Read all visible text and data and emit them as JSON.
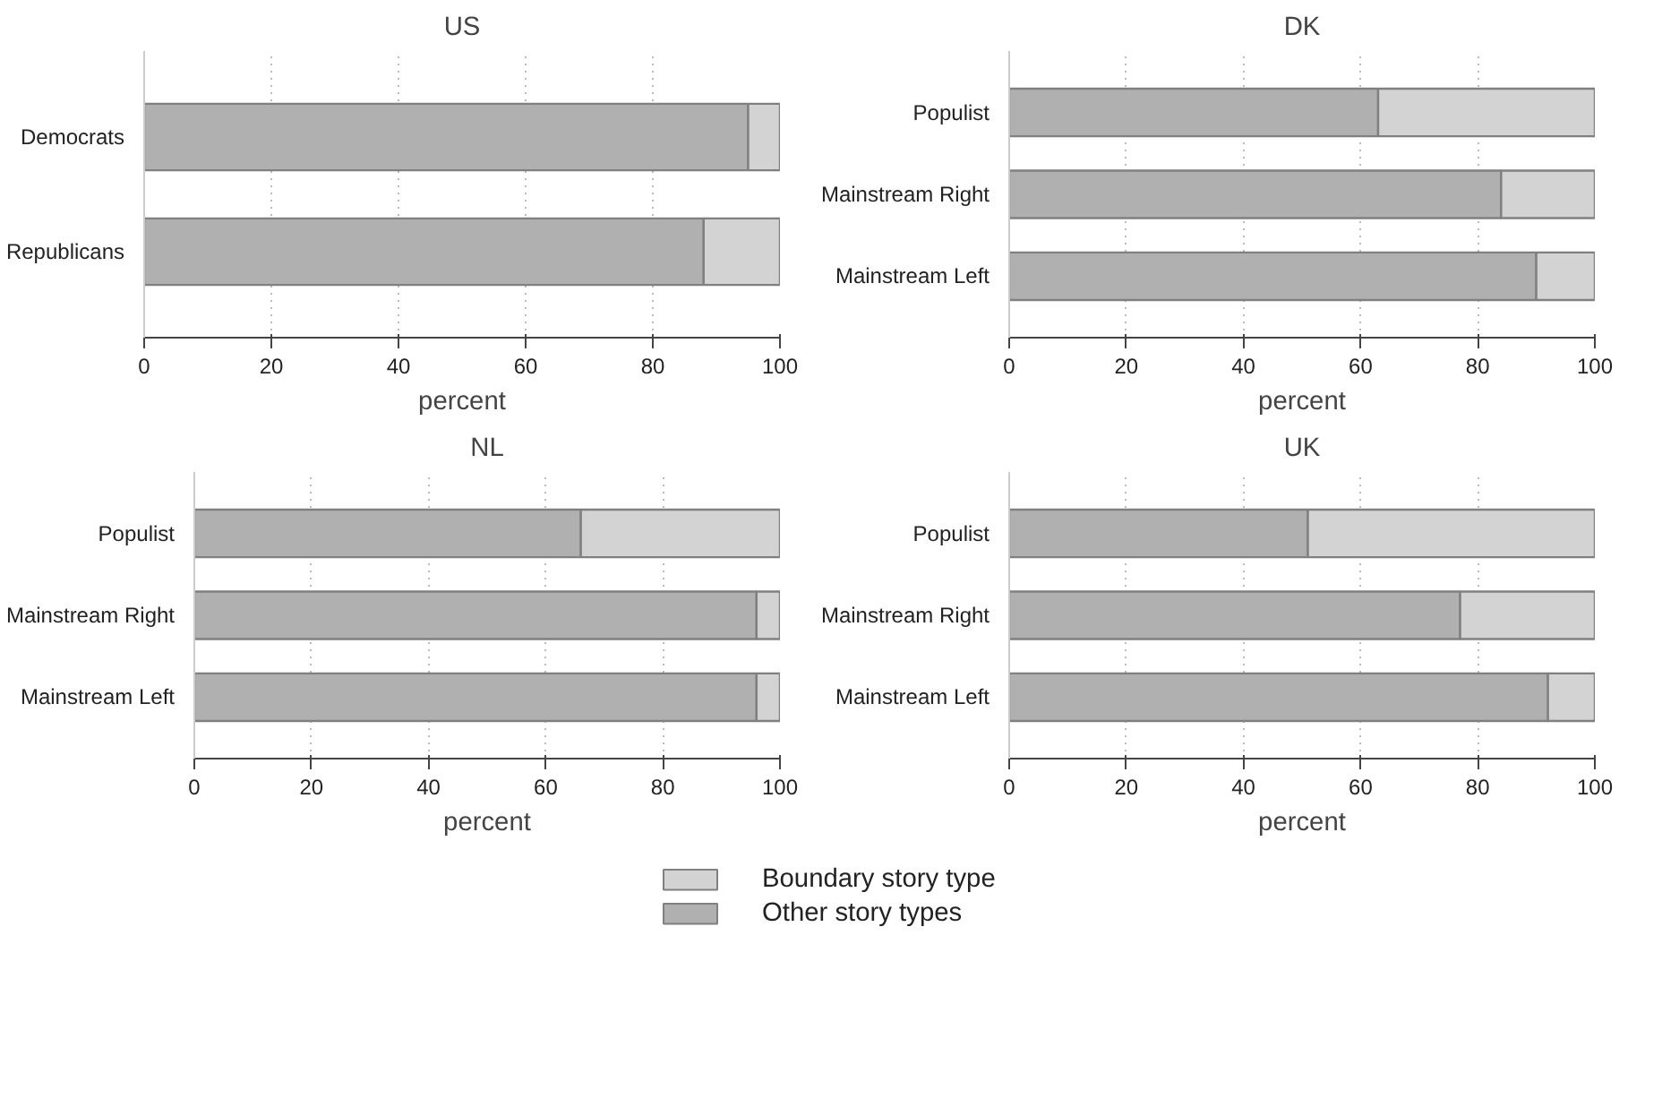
{
  "chart_data": [
    {
      "type": "bar",
      "title": "US",
      "orientation": "horizontal",
      "stacked": true,
      "categories": [
        "Democrats",
        "Republicans"
      ],
      "xlabel": "percent",
      "xlim": [
        0,
        100
      ],
      "xticks": [
        0,
        20,
        40,
        60,
        80,
        100
      ],
      "grid": "x",
      "legend": "bottom",
      "series": [
        {
          "name": "Other story types",
          "color": "#b0b0b0",
          "values": [
            95,
            88
          ]
        },
        {
          "name": "Boundary story type",
          "color": "#d3d3d3",
          "values": [
            5,
            12
          ]
        }
      ]
    },
    {
      "type": "bar",
      "title": "DK",
      "orientation": "horizontal",
      "stacked": true,
      "categories": [
        "Populist",
        "Mainstream Right",
        "Mainstream Left"
      ],
      "xlabel": "percent",
      "xlim": [
        0,
        100
      ],
      "xticks": [
        0,
        20,
        40,
        60,
        80,
        100
      ],
      "grid": "x",
      "series": [
        {
          "color": "#b0b0b0",
          "values": [
            63,
            84,
            90
          ]
        },
        {
          "color": "#d3d3d3",
          "values": [
            37,
            16,
            10
          ]
        }
      ]
    },
    {
      "type": "bar",
      "title": "NL",
      "orientation": "horizontal",
      "stacked": true,
      "categories": [
        "Populist",
        "Mainstream Right",
        "Mainstream Left"
      ],
      "xlabel": "percent",
      "xlim": [
        0,
        100
      ],
      "xticks": [
        0,
        20,
        40,
        60,
        80,
        100
      ],
      "grid": "x",
      "series": [
        {
          "color": "#b0b0b0",
          "values": [
            66,
            96,
            96
          ]
        },
        {
          "color": "#d3d3d3",
          "values": [
            34,
            4,
            4
          ]
        }
      ]
    },
    {
      "type": "bar",
      "title": "UK",
      "orientation": "horizontal",
      "stacked": true,
      "categories": [
        "Populist",
        "Mainstream Right",
        "Mainstream Left"
      ],
      "xlabel": "percent",
      "xlim": [
        0,
        100
      ],
      "xticks": [
        0,
        20,
        40,
        60,
        80,
        100
      ],
      "grid": "x",
      "series": [
        {
          "color": "#b0b0b0",
          "values": [
            51,
            77,
            92
          ]
        },
        {
          "color": "#d3d3d3",
          "values": [
            49,
            23,
            8
          ]
        }
      ]
    }
  ]
}
